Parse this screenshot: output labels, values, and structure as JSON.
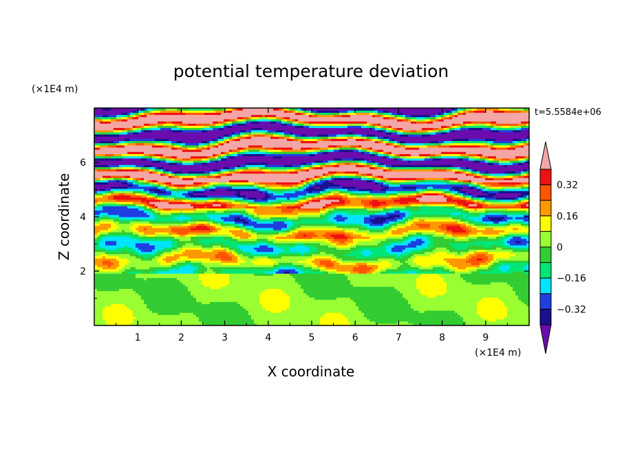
{
  "chart_data": {
    "type": "heatmap",
    "title": "potential temperature deviation",
    "xlabel": "X coordinate",
    "ylabel": "Z coordinate",
    "x_unit_label": "(×1E4 m)",
    "y_unit_label": "(×1E4 m)",
    "time_label": "t=5.5584e+06",
    "xlim": [
      0,
      10
    ],
    "ylim": [
      0,
      8
    ],
    "x_ticks": [
      "1",
      "2",
      "3",
      "4",
      "5",
      "6",
      "7",
      "8",
      "9"
    ],
    "y_ticks": [
      "2",
      "4",
      "6"
    ],
    "colorbar": {
      "tick_labels": [
        "0.32",
        "0.16",
        "0",
        "−0.16",
        "−0.32"
      ],
      "levels": [
        -0.4,
        -0.32,
        -0.24,
        -0.16,
        -0.08,
        0,
        0.08,
        0.16,
        0.24,
        0.32,
        0.4
      ],
      "colors": [
        "#6a0dad",
        "#1a0f8c",
        "#1f3fe0",
        "#00e5ff",
        "#00e676",
        "#33cc33",
        "#99ff33",
        "#ffff00",
        "#ff9900",
        "#ff5500",
        "#ee1111",
        "#f4a6a6"
      ],
      "extend": "both"
    },
    "field_bands": [
      {
        "z": [
          0.0,
          1.5
        ],
        "value": 0.03,
        "note": "green/lime mix"
      },
      {
        "z": [
          1.5,
          2.2
        ],
        "value": -0.05
      },
      {
        "z": [
          2.2,
          3.5
        ],
        "value": 0.0
      },
      {
        "z": [
          3.5,
          4.5
        ],
        "value": -0.2
      },
      {
        "z": [
          4.5,
          5.5
        ],
        "value": 0.3
      },
      {
        "z": [
          5.5,
          6.5
        ],
        "value": -0.45
      },
      {
        "z": [
          6.5,
          7.3
        ],
        "value": 0.45
      },
      {
        "z": [
          7.3,
          8.0
        ],
        "value": -0.45
      }
    ]
  }
}
